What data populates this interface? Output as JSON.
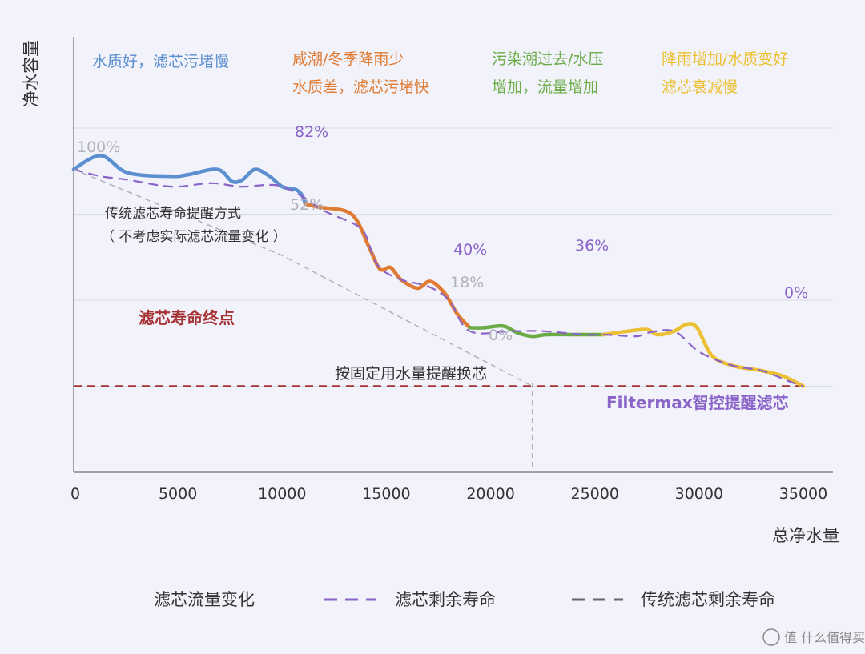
{
  "chart_data": {
    "type": "line",
    "ylabel": "净水容量",
    "xlabel": "总净水量",
    "xlim": [
      0,
      36000
    ],
    "x_ticks": [
      0,
      5000,
      10000,
      15000,
      20000,
      25000,
      30000,
      35000
    ],
    "grid": "horizontal",
    "legend_position": "bottom",
    "colors": {
      "blue": "#5b8fd0",
      "orange": "#e07b33",
      "green": "#6aab45",
      "yellow": "#ecc032",
      "purple": "#8a64c8",
      "gray": "#b0b0bf",
      "red": "#a73235"
    },
    "series": [
      {
        "name": "滤芯流量变化",
        "segments": [
          {
            "color": "blue",
            "points": [
              [
                0,
                88
              ],
              [
                1300,
                92
              ],
              [
                2600,
                87
              ],
              [
                4700,
                86
              ],
              [
                5500,
                86.5
              ],
              [
                6900,
                88
              ],
              [
                7600,
                84.5
              ],
              [
                8100,
                85
              ],
              [
                8700,
                88
              ],
              [
                9400,
                86
              ],
              [
                10000,
                83
              ],
              [
                10700,
                82
              ],
              [
                11000,
                80
              ],
              [
                11100,
                78
              ]
            ]
          },
          {
            "color": "orange",
            "points": [
              [
                11100,
                78
              ],
              [
                11800,
                77
              ],
              [
                13000,
                76
              ],
              [
                13600,
                73
              ],
              [
                14200,
                65
              ],
              [
                14700,
                59
              ],
              [
                15200,
                59.5
              ],
              [
                15700,
                56
              ],
              [
                16500,
                53.5
              ],
              [
                17100,
                55.5
              ],
              [
                17800,
                52
              ],
              [
                18400,
                46
              ],
              [
                19000,
                42
              ]
            ]
          },
          {
            "color": "green",
            "points": [
              [
                19000,
                42
              ],
              [
                19700,
                42
              ],
              [
                20600,
                42.5
              ],
              [
                21300,
                40.5
              ],
              [
                22000,
                39.5
              ],
              [
                22700,
                40
              ],
              [
                24000,
                40
              ],
              [
                25400,
                40
              ]
            ]
          },
          {
            "color": "yellow",
            "points": [
              [
                25400,
                40
              ],
              [
                26600,
                41
              ],
              [
                27500,
                41.5
              ],
              [
                28000,
                40
              ],
              [
                28800,
                41
              ],
              [
                29400,
                43
              ],
              [
                29900,
                42
              ],
              [
                30600,
                34
              ],
              [
                31600,
                31
              ],
              [
                33000,
                29.5
              ],
              [
                34000,
                28
              ],
              [
                35000,
                25
              ]
            ]
          }
        ]
      },
      {
        "name": "滤芯剩余寿命",
        "color": "purple",
        "points": [
          [
            0,
            88
          ],
          [
            1300,
            86
          ],
          [
            2600,
            85
          ],
          [
            4700,
            83
          ],
          [
            6600,
            84
          ],
          [
            8000,
            83
          ],
          [
            9300,
            83.5
          ],
          [
            10000,
            83
          ],
          [
            11000,
            80
          ],
          [
            12000,
            76
          ],
          [
            13500,
            72
          ],
          [
            14000,
            69
          ],
          [
            14600,
            60
          ],
          [
            15700,
            56
          ],
          [
            17000,
            54
          ],
          [
            18000,
            50
          ],
          [
            19000,
            41
          ],
          [
            21000,
            41
          ],
          [
            22500,
            41
          ],
          [
            24500,
            40
          ],
          [
            25500,
            40
          ],
          [
            27000,
            39.5
          ],
          [
            27500,
            40.5
          ],
          [
            28800,
            41
          ],
          [
            30000,
            35
          ],
          [
            31600,
            31
          ],
          [
            33000,
            29.5
          ],
          [
            34500,
            26
          ],
          [
            35000,
            25
          ]
        ]
      },
      {
        "name": "传统滤芯剩余寿命",
        "color": "gray",
        "points": [
          [
            0,
            88
          ],
          [
            10000,
            63
          ],
          [
            22000,
            25
          ]
        ]
      }
    ],
    "annotations": [
      {
        "text": "水质好，滤芯污堵慢",
        "color": "blue"
      },
      {
        "text": "咸潮/冬季降雨少",
        "color": "orange"
      },
      {
        "text": "水质差，滤芯污堵快",
        "color": "orange"
      },
      {
        "text": "污染潮过去/水压",
        "color": "green"
      },
      {
        "text": "增加，流量增加",
        "color": "green"
      },
      {
        "text": "降雨增加/水质变好",
        "color": "yellow"
      },
      {
        "text": "滤芯衰减慢",
        "color": "yellow"
      },
      {
        "text": "82%",
        "color": "purple"
      },
      {
        "text": "40%",
        "color": "purple"
      },
      {
        "text": "36%",
        "color": "purple"
      },
      {
        "text": "0%",
        "color": "purple"
      },
      {
        "text": "100%",
        "color": "gray"
      },
      {
        "text": "52%",
        "color": "gray"
      },
      {
        "text": "18%",
        "color": "gray"
      },
      {
        "text": "0%",
        "color": "gray"
      },
      {
        "text": "传统滤芯寿命提醒方式",
        "color": "dark"
      },
      {
        "text": "（ 不考虑实际滤芯流量变化 ）",
        "color": "dark"
      },
      {
        "text": "滤芯寿命终点",
        "color": "red"
      },
      {
        "text": "按固定用水量提醒换芯",
        "color": "dark"
      },
      {
        "text": "Filtermax智控提醒滤芯",
        "color": "purple"
      }
    ],
    "reference_lines": [
      {
        "kind": "horizontal",
        "y": 25,
        "color": "red"
      },
      {
        "kind": "vertical",
        "x": 22000,
        "color": "gray"
      },
      {
        "kind": "vertical",
        "x": 35000,
        "color": "purple"
      }
    ],
    "watermark": "值 什么值得买"
  }
}
